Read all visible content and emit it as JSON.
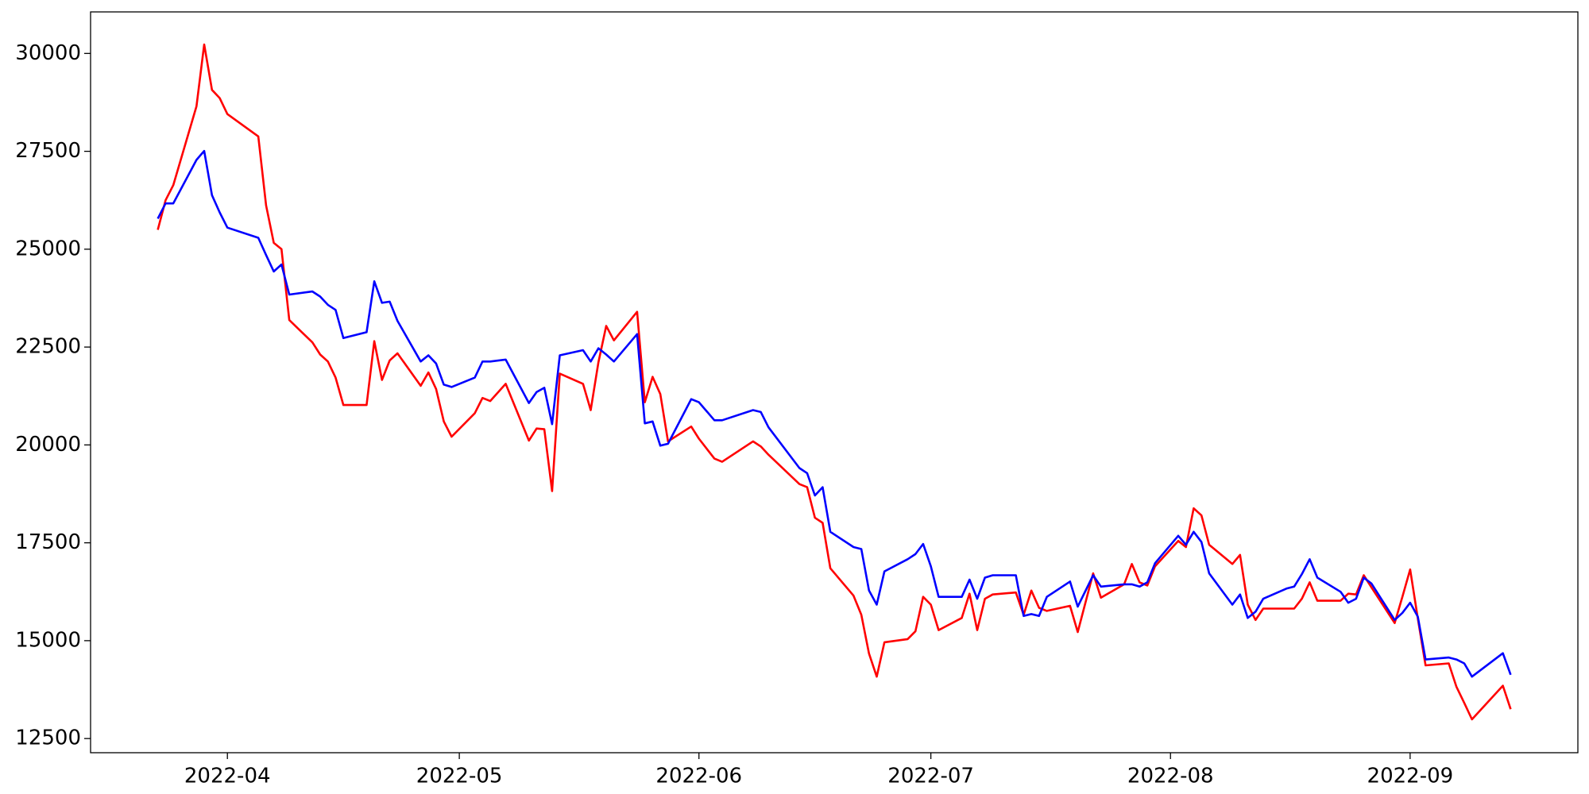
{
  "chart_data": {
    "type": "line",
    "x": [
      19074,
      19075,
      19076,
      19079,
      19080,
      19081,
      19082,
      19083,
      19087,
      19088,
      19089,
      19090,
      19091,
      19094,
      19095,
      19096,
      19097,
      19098,
      19101,
      19102,
      19103,
      19104,
      19105,
      19108,
      19109,
      19110,
      19111,
      19112,
      19115,
      19116,
      19117,
      19119,
      19122,
      19123,
      19124,
      19125,
      19126,
      19129,
      19130,
      19131,
      19132,
      19133,
      19136,
      19137,
      19138,
      19139,
      19140,
      19143,
      19144,
      19146,
      19147,
      19151,
      19152,
      19153,
      19157,
      19158,
      19159,
      19160,
      19161,
      19164,
      19165,
      19166,
      19167,
      19168,
      19171,
      19172,
      19173,
      19174,
      19175,
      19178,
      19179,
      19180,
      19181,
      19182,
      19185,
      19186,
      19187,
      19188,
      19189,
      19192,
      19193,
      19195,
      19196,
      19199,
      19200,
      19201,
      19202,
      19203,
      19206,
      19207,
      19208,
      19209,
      19210,
      19213,
      19214,
      19215,
      19216,
      19217,
      19220,
      19221,
      19222,
      19223,
      19224,
      19227,
      19228,
      19229,
      19230,
      19231,
      19234,
      19235,
      19236,
      19237,
      19238,
      19241,
      19242,
      19243,
      19244,
      19248,
      19249
    ],
    "series": [
      {
        "name": "red",
        "color": "#ff0000",
        "values": [
          25496,
          26250,
          26635,
          28650,
          30230,
          29070,
          28860,
          28450,
          27880,
          26120,
          25160,
          25000,
          23190,
          22620,
          22310,
          22130,
          21720,
          21020,
          21020,
          22650,
          21660,
          22160,
          22340,
          21510,
          21850,
          21430,
          20600,
          20210,
          20810,
          21200,
          21120,
          21560,
          20110,
          20420,
          20400,
          18820,
          21820,
          21560,
          20890,
          22110,
          23040,
          22670,
          23400,
          21090,
          21740,
          21300,
          20090,
          20470,
          20160,
          19650,
          19570,
          20090,
          19960,
          19750,
          19000,
          18920,
          18140,
          18010,
          16850,
          16150,
          15660,
          14670,
          14080,
          14960,
          15040,
          15240,
          16120,
          15920,
          15270,
          15580,
          16200,
          15270,
          16070,
          16180,
          16230,
          15660,
          16280,
          15840,
          15760,
          15890,
          15220,
          16720,
          16100,
          16440,
          16960,
          16490,
          16410,
          16900,
          17550,
          17390,
          18380,
          18200,
          17450,
          16960,
          17190,
          15920,
          15530,
          15820,
          15820,
          15820,
          16070,
          16490,
          16020,
          16020,
          16200,
          16180,
          16670,
          16360,
          15450,
          16120,
          16820,
          15560,
          14370,
          14420,
          13820,
          13410,
          12990,
          13850,
          13250
        ]
      },
      {
        "name": "blue",
        "color": "#0000ff",
        "values": [
          25780,
          26170,
          26170,
          27280,
          27510,
          26380,
          25940,
          25550,
          25290,
          24850,
          24430,
          24610,
          23840,
          23920,
          23790,
          23580,
          23450,
          22730,
          22880,
          24180,
          23630,
          23660,
          23170,
          22130,
          22290,
          22080,
          21540,
          21480,
          21720,
          22130,
          22130,
          22180,
          21070,
          21350,
          21460,
          20530,
          22290,
          22420,
          22130,
          22470,
          22310,
          22130,
          22830,
          20550,
          20600,
          19980,
          20030,
          21170,
          21090,
          20630,
          20630,
          20890,
          20840,
          20450,
          19410,
          19280,
          18710,
          18920,
          17780,
          17390,
          17340,
          16280,
          15920,
          16770,
          17080,
          17210,
          17470,
          16900,
          16120,
          16120,
          16560,
          16070,
          16610,
          16670,
          16670,
          15630,
          15680,
          15630,
          16120,
          16510,
          15870,
          16670,
          16380,
          16440,
          16440,
          16380,
          16490,
          16980,
          17680,
          17450,
          17780,
          17520,
          16720,
          15920,
          16180,
          15580,
          15740,
          16070,
          16330,
          16380,
          16700,
          17080,
          16610,
          16250,
          15970,
          16070,
          16610,
          16460,
          15530,
          15710,
          15970,
          15610,
          14520,
          14570,
          14520,
          14420,
          14080,
          14680,
          14130
        ]
      }
    ],
    "xlim": [
      19065.3,
      19257.7
    ],
    "xticks": [
      {
        "value": 19083,
        "label": "2022-04"
      },
      {
        "value": 19113,
        "label": "2022-05"
      },
      {
        "value": 19144,
        "label": "2022-06"
      },
      {
        "value": 19174,
        "label": "2022-07"
      },
      {
        "value": 19205,
        "label": "2022-08"
      },
      {
        "value": 19236,
        "label": "2022-09"
      }
    ],
    "ylim": [
      12138,
      31061
    ],
    "yticks": [
      12500,
      15000,
      17500,
      20000,
      22500,
      25000,
      27500,
      30000
    ],
    "grid": false
  }
}
